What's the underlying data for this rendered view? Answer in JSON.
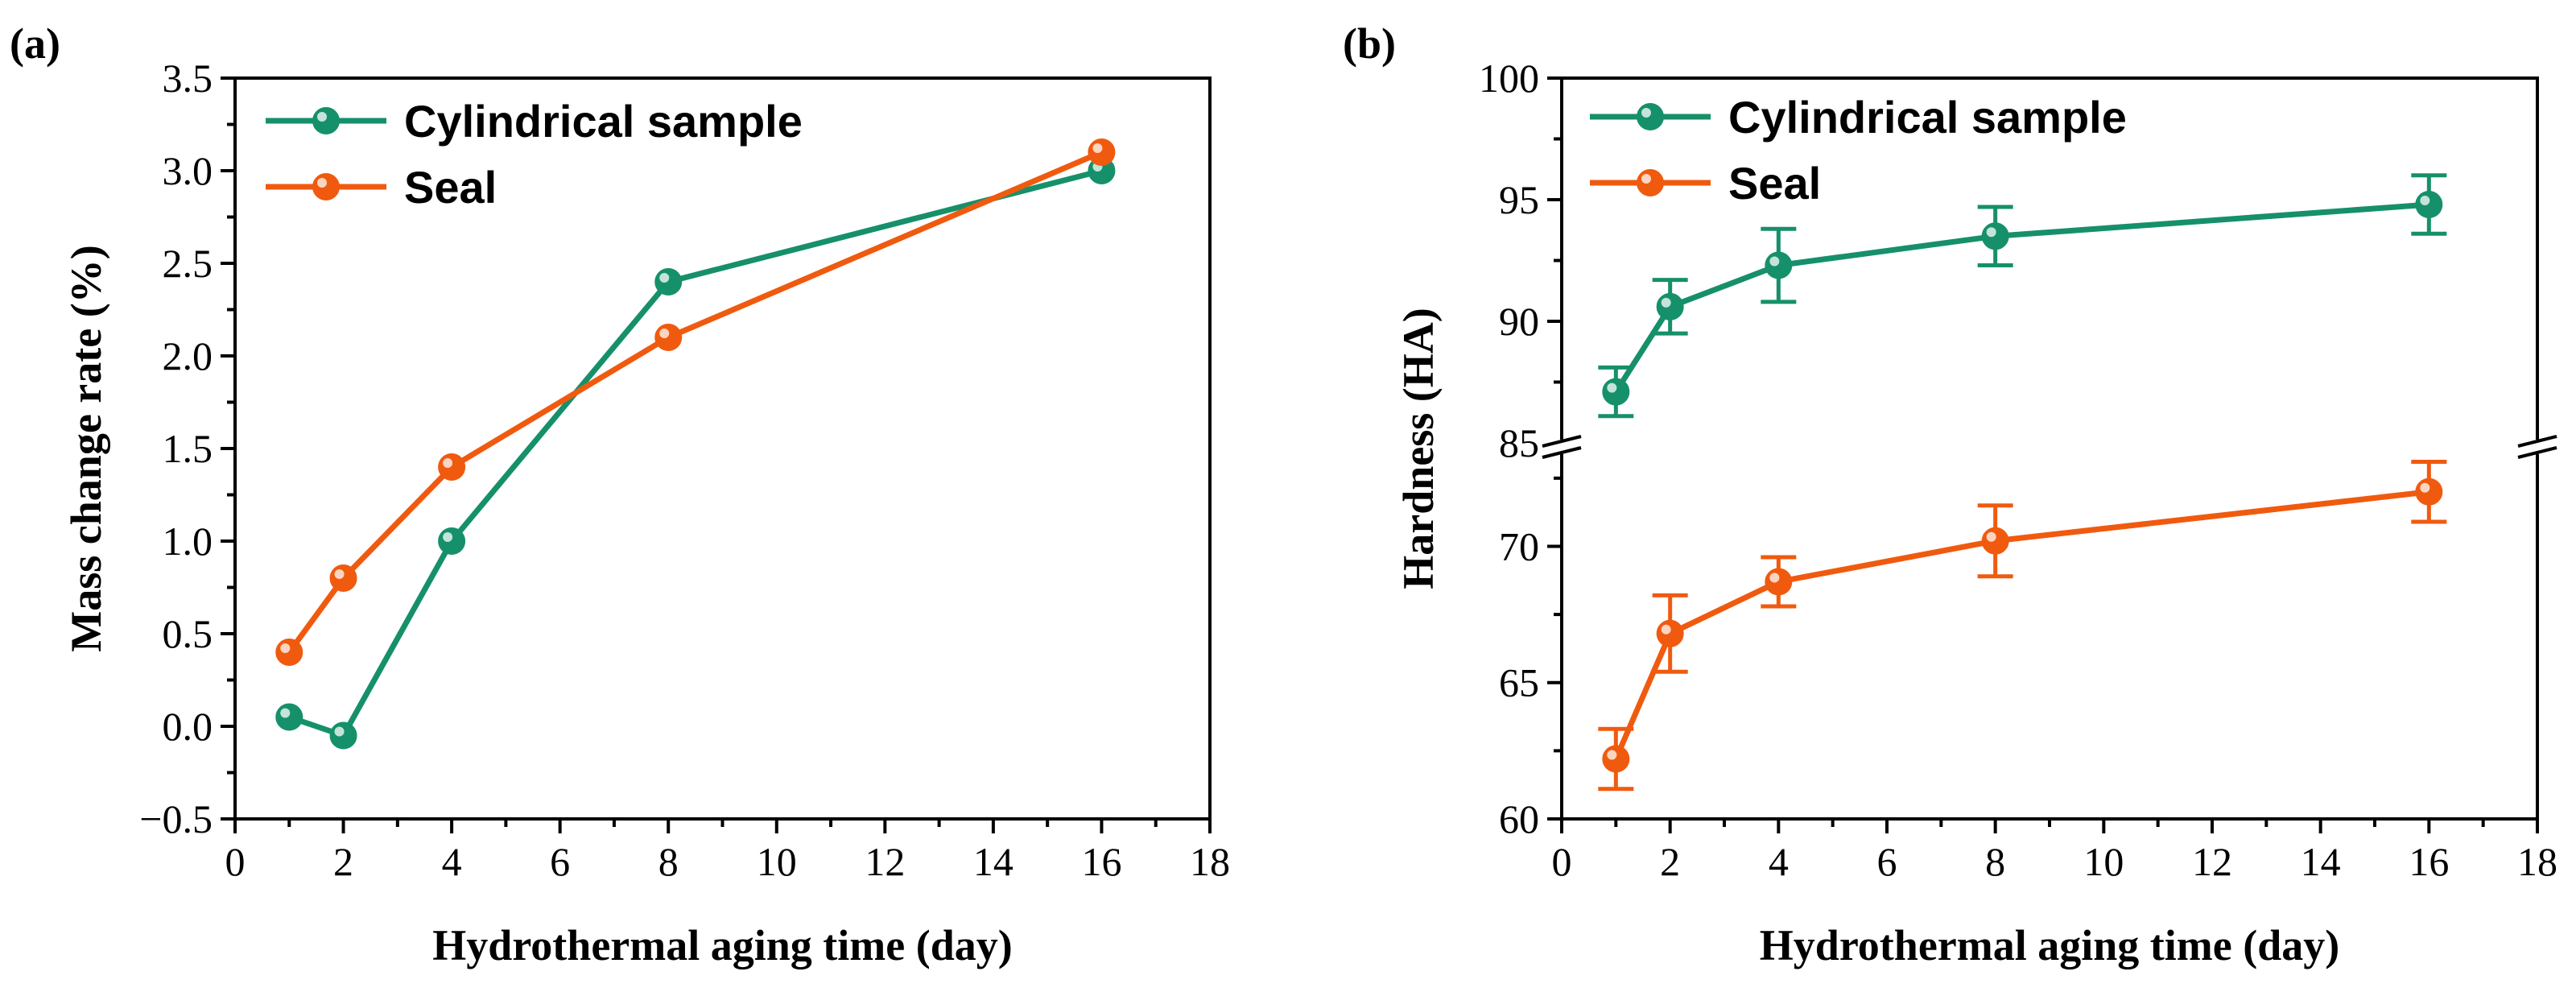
{
  "chart_data": [
    {
      "type": "line",
      "panel_label": "(a)",
      "xlabel": "Hydrothermal aging time (day)",
      "ylabel": "Mass change rate (%)",
      "xlim": [
        0,
        18
      ],
      "ylim": [
        -0.5,
        3.5
      ],
      "xticks": [
        "0",
        "2",
        "4",
        "6",
        "8",
        "10",
        "12",
        "14",
        "16",
        "18"
      ],
      "yticks": [
        "−0.5",
        "0.0",
        "0.5",
        "1.0",
        "1.5",
        "2.0",
        "2.5",
        "3.0",
        "3.5"
      ],
      "legend_position": "top-left",
      "series": [
        {
          "name": "Cylindrical sample",
          "color": "#16906a",
          "x": [
            1,
            2,
            4,
            8,
            16
          ],
          "y": [
            0.05,
            -0.05,
            1.0,
            2.4,
            3.0
          ]
        },
        {
          "name": "Seal",
          "color": "#f05a0f",
          "x": [
            1,
            2,
            4,
            8,
            16
          ],
          "y": [
            0.4,
            0.8,
            1.4,
            2.1,
            3.1
          ]
        }
      ]
    },
    {
      "type": "line",
      "panel_label": "(b)",
      "xlabel": "Hydrothermal aging time (day)",
      "ylabel": "Hardness (HA)",
      "xlim": [
        0,
        18
      ],
      "y_break": true,
      "upper_ylim": [
        85,
        100
      ],
      "lower_ylim": [
        60,
        73.5
      ],
      "xticks": [
        "0",
        "2",
        "4",
        "6",
        "8",
        "10",
        "12",
        "14",
        "16",
        "18"
      ],
      "upper_yticks": [
        "85",
        "90",
        "95",
        "100"
      ],
      "lower_yticks": [
        "60",
        "65",
        "70"
      ],
      "legend_position": "top-left",
      "series": [
        {
          "name": "Cylindrical sample",
          "color": "#16906a",
          "x": [
            1,
            2,
            4,
            8,
            16
          ],
          "y": [
            87.1,
            90.6,
            92.3,
            93.5,
            94.8
          ],
          "error": [
            1.0,
            1.1,
            1.5,
            1.2,
            1.2
          ]
        },
        {
          "name": "Seal",
          "color": "#f05a0f",
          "x": [
            1,
            2,
            4,
            8,
            16
          ],
          "y": [
            62.2,
            66.8,
            68.7,
            70.2,
            72.0
          ],
          "error": [
            1.1,
            1.4,
            0.9,
            1.3,
            1.1
          ]
        }
      ]
    }
  ]
}
